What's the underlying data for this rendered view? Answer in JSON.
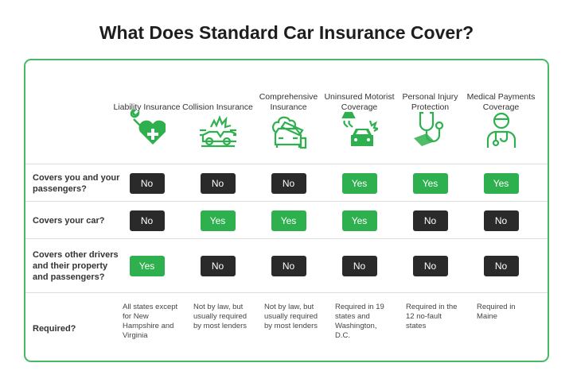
{
  "title": "What Does Standard Car Insurance Cover?",
  "colors": {
    "accent": "#2fb04f",
    "no_badge": "#2a2a2a",
    "border": "#47b865"
  },
  "columns": [
    {
      "name": "Liability Insurance",
      "icon": "wrench-heart-plus-icon"
    },
    {
      "name": "Collision Insurance",
      "icon": "car-crash-icon"
    },
    {
      "name": "Comprehensive Insurance",
      "icon": "tree-on-car-icon"
    },
    {
      "name": "Uninsured Motorist Coverage",
      "icon": "hit-and-run-car-icon"
    },
    {
      "name": "Personal Injury Protection",
      "icon": "stethoscope-money-icon"
    },
    {
      "name": "Medical Payments Coverage",
      "icon": "doctor-icon"
    }
  ],
  "rows": [
    {
      "label": "Covers you and your passengers?",
      "values": [
        "No",
        "No",
        "No",
        "Yes",
        "Yes",
        "Yes"
      ]
    },
    {
      "label": "Covers your car?",
      "values": [
        "No",
        "Yes",
        "Yes",
        "Yes",
        "No",
        "No"
      ]
    },
    {
      "label": "Covers other drivers and their property and passengers?",
      "values": [
        "Yes",
        "No",
        "No",
        "No",
        "No",
        "No"
      ]
    }
  ],
  "required": {
    "label": "Required?",
    "values": [
      "All states except for New Hampshire and Virginia",
      "Not by law, but usually required by most lenders",
      "Not by law, but usually required by most lenders",
      "Required in 19 states and Washington, D.C.",
      "Required in the 12 no-fault states",
      "Required in Maine"
    ]
  }
}
